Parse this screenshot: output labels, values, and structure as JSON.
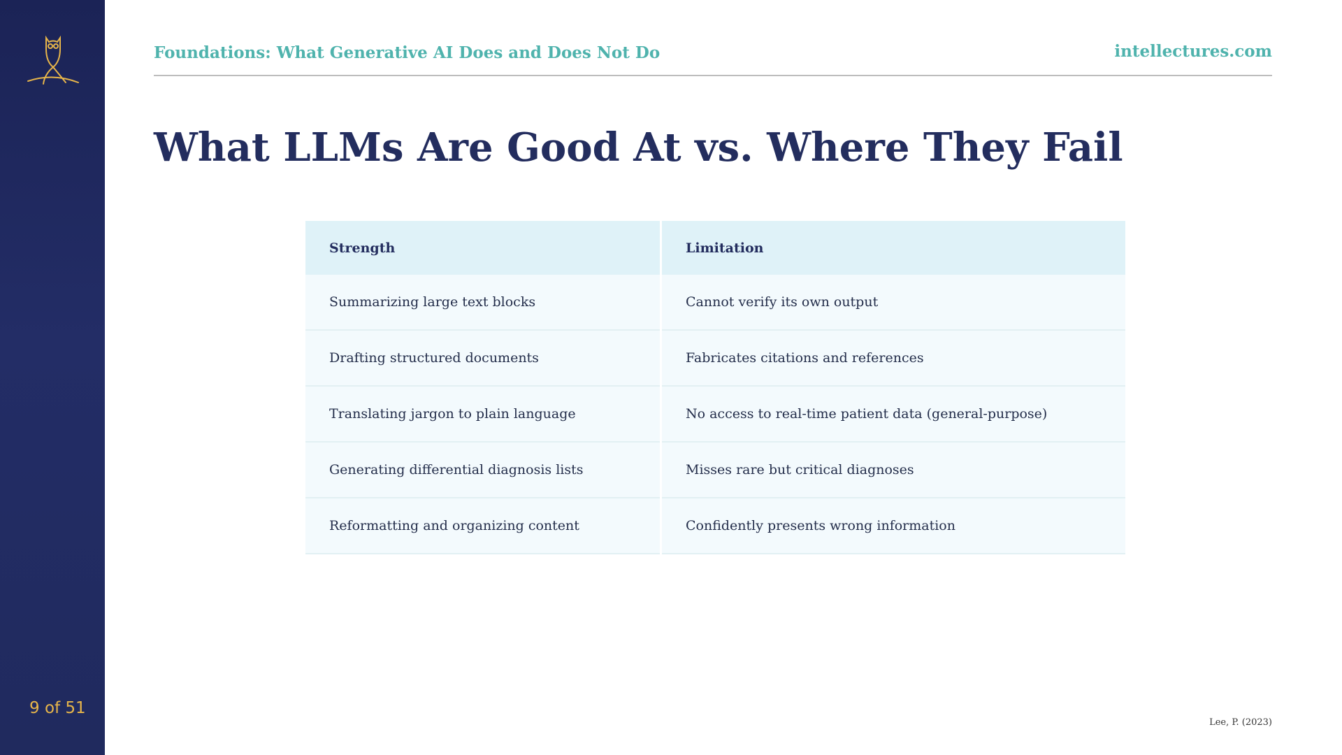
{
  "header": {
    "section": "Foundations: What Generative AI Does and Does Not Do",
    "site": "intellectures.com"
  },
  "title": "What LLMs Are Good At vs. Where They Fail",
  "table": {
    "columns": [
      "Strength",
      "Limitation"
    ],
    "rows": [
      [
        "Summarizing large text blocks",
        "Cannot verify its own output"
      ],
      [
        "Drafting structured documents",
        "Fabricates citations and references"
      ],
      [
        "Translating jargon to plain language",
        "No access to real-time patient data (general-purpose)"
      ],
      [
        "Generating differential diagnosis lists",
        "Misses rare but critical diagnoses"
      ],
      [
        "Reformatting and organizing content",
        "Confidently presents wrong information"
      ]
    ]
  },
  "footer": {
    "page": "9 of 51",
    "citation": "Lee, P. (2023)"
  }
}
